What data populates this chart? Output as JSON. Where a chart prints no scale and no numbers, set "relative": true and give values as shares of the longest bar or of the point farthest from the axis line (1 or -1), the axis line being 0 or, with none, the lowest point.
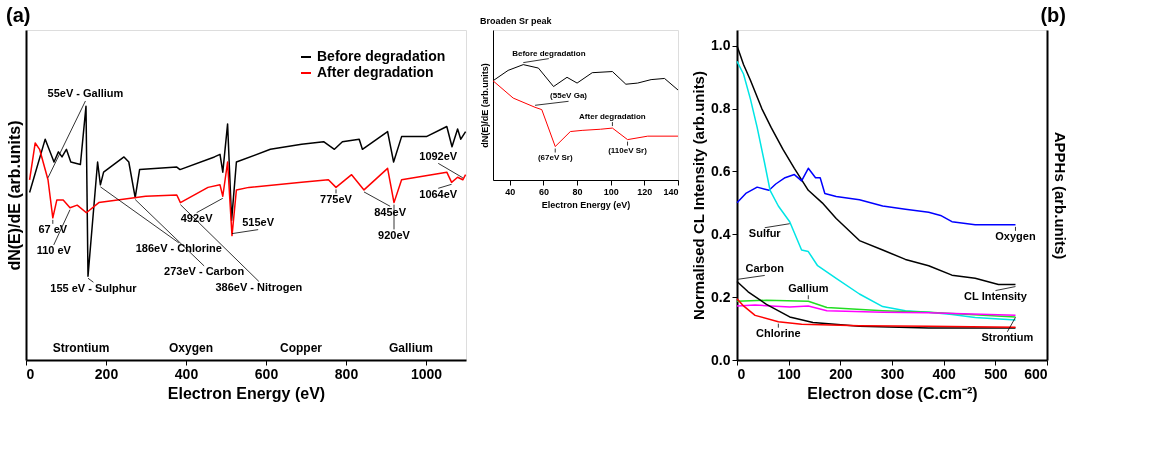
{
  "chart_data": [
    {
      "type": "line",
      "title": "(a)",
      "xlabel": "Electron Energy (eV)",
      "ylabel": "dN(E)/dE (arb.units)",
      "relative": true,
      "xlim": [
        0,
        1100
      ],
      "xticks": [
        0,
        200,
        400,
        600,
        800,
        1000
      ],
      "tick_labels": "x",
      "grid": false,
      "legend": "top right",
      "marker": "none",
      "line_style": "solid",
      "series": [
        {
          "name": "Before degradation",
          "color": "#000000",
          "x": [
            9,
            48,
            70,
            81,
            90,
            101,
            112,
            136,
            150,
            155,
            179,
            186,
            194,
            245,
            257,
            273,
            284,
            377,
            385,
            471,
            485,
            492,
            504,
            514,
            526,
            611,
            689,
            744,
            771,
            791,
            833,
            841,
            904,
            919,
            939,
            1001,
            1052,
            1065,
            1079,
            1087,
            1099
          ],
          "values": [
            0.66,
            0.87,
            0.78,
            0.82,
            0.8,
            0.83,
            0.78,
            0.77,
            1.0,
            0.33,
            0.78,
            0.69,
            0.74,
            0.8,
            0.78,
            0.64,
            0.75,
            0.76,
            0.75,
            0.8,
            0.81,
            0.74,
            0.93,
            0.55,
            0.78,
            0.83,
            0.85,
            0.86,
            0.83,
            0.86,
            0.87,
            0.83,
            0.9,
            0.78,
            0.88,
            0.88,
            0.92,
            0.84,
            0.91,
            0.87,
            0.9
          ]
        },
        {
          "name": "After degradation",
          "color": "#ff0000",
          "x": [
            9,
            23,
            34,
            55,
            67,
            77,
            93,
            110,
            128,
            151,
            182,
            299,
            377,
            386,
            455,
            485,
            492,
            504,
            515,
            526,
            557,
            689,
            756,
            775,
            814,
            845,
            904,
            920,
            939,
            1052,
            1064,
            1079,
            1092,
            1099
          ],
          "values": [
            0.71,
            0.855,
            0.83,
            0.71,
            0.56,
            0.63,
            0.63,
            0.6,
            0.61,
            0.58,
            0.62,
            0.645,
            0.65,
            0.62,
            0.68,
            0.69,
            0.645,
            0.78,
            0.49,
            0.67,
            0.68,
            0.7,
            0.71,
            0.68,
            0.73,
            0.67,
            0.755,
            0.62,
            0.71,
            0.74,
            0.7,
            0.72,
            0.71,
            0.73
          ]
        }
      ],
      "annotations": [
        {
          "text": "55eV - Gallium",
          "x": 55,
          "y": 0.71
        },
        {
          "text": "67 eV",
          "x": 67,
          "y": 0.56
        },
        {
          "text": "110 eV",
          "x": 110,
          "y": 0.6
        },
        {
          "text": "155 eV - Sulphur",
          "x": 155,
          "y": 0.33
        },
        {
          "text": "186eV - Chlorine",
          "x": 186,
          "y": 0.69
        },
        {
          "text": "273eV - Carbon",
          "x": 273,
          "y": 0.64
        },
        {
          "text": "386eV - Nitrogen",
          "x": 386,
          "y": 0.62
        },
        {
          "text": "492eV",
          "x": 492,
          "y": 0.645
        },
        {
          "text": "515eV",
          "x": 515,
          "y": 0.49
        },
        {
          "text": "775eV",
          "x": 775,
          "y": 0.68
        },
        {
          "text": "845eV",
          "x": 845,
          "y": 0.67
        },
        {
          "text": "920eV",
          "x": 920,
          "y": 0.62
        },
        {
          "text": "1064eV",
          "x": 1064,
          "y": 0.7
        },
        {
          "text": "1092eV",
          "x": 1092,
          "y": 0.71
        },
        "Strontium",
        "Oxygen",
        "Copper",
        "Gallium"
      ]
    },
    {
      "type": "line",
      "title": "Broaden Sr peak",
      "xlabel": "Electron Energy (eV)",
      "ylabel": "dN(E)/dE (arb.units)",
      "relative": true,
      "xlim": [
        30,
        140
      ],
      "xticks": [
        40,
        60,
        80,
        100,
        120,
        140
      ],
      "tick_labels": "x",
      "grid": false,
      "marker": "none",
      "line_style": "solid",
      "series": [
        {
          "color": "#000000",
          "x": [
            30,
            39,
            48,
            57,
            66,
            74,
            80,
            89,
            101,
            109,
            116,
            124,
            132,
            140
          ],
          "values": [
            0.86,
            0.95,
            1.0,
            0.97,
            0.81,
            0.89,
            0.84,
            0.93,
            0.94,
            0.83,
            0.84,
            0.87,
            0.88,
            0.78
          ]
        },
        {
          "color": "#ff0000",
          "x": [
            30,
            42,
            55,
            59,
            67,
            76,
            83,
            94,
            101,
            110,
            122,
            140
          ],
          "values": [
            0.86,
            0.71,
            0.63,
            0.61,
            0.29,
            0.42,
            0.43,
            0.44,
            0.45,
            0.35,
            0.38,
            0.38
          ]
        }
      ],
      "annotations": [
        {
          "text": "Before degradation",
          "x": 48,
          "y": 1.0
        },
        {
          "text": "(55eV Ga)",
          "x": 55,
          "y": 0.63
        },
        {
          "text": "(67eV Sr)",
          "x": 67,
          "y": 0.29
        },
        {
          "text": "After degradation",
          "x": 101,
          "y": 0.45
        },
        {
          "text": "(110eV Sr)",
          "x": 110,
          "y": 0.35
        }
      ]
    },
    {
      "type": "line",
      "title": "(b)",
      "xlabel": "Electron dose (C.cm⁻²)",
      "ylabel": "Normalised CL Intensity (arb.units)",
      "y2label": "APPHs (arb.units)",
      "xlim": [
        0,
        600
      ],
      "xticks": [
        0,
        100,
        200,
        300,
        400,
        500,
        600
      ],
      "ylim": [
        0,
        1.05
      ],
      "yticks": [
        {
          "value": 0,
          "label": "0.0"
        },
        0.2,
        0.4,
        0.6,
        0.8,
        {
          "value": 1,
          "label": "1.0"
        }
      ],
      "grid": false,
      "marker": "none",
      "line_style": "solid",
      "series": [
        {
          "color": "#000000",
          "x": [
            0,
            12.6,
            26,
            48,
            66,
            89,
            111,
            138,
            165,
            192,
            237,
            282,
            326,
            371,
            416,
            461,
            506,
            539
          ],
          "values": [
            1.0,
            0.94,
            0.89,
            0.8,
            0.74,
            0.67,
            0.61,
            0.54,
            0.5,
            0.45,
            0.38,
            0.35,
            0.32,
            0.3,
            0.27,
            0.26,
            0.24,
            0.24
          ]
        },
        {
          "color": "#0000ff",
          "x": [
            0,
            17,
            39,
            62,
            75,
            93,
            111,
            125,
            138,
            152,
            161,
            170,
            192,
            237,
            282,
            326,
            371,
            394,
            416,
            461,
            539
          ],
          "values": [
            0.5,
            0.53,
            0.55,
            0.54,
            0.56,
            0.58,
            0.59,
            0.57,
            0.61,
            0.58,
            0.58,
            0.53,
            0.52,
            0.51,
            0.49,
            0.48,
            0.47,
            0.46,
            0.44,
            0.43,
            0.43
          ]
        },
        {
          "color": "#00e5e5",
          "x": [
            0,
            12.6,
            26,
            39,
            53,
            64,
            80,
            102,
            125,
            138,
            156,
            192,
            237,
            282,
            326,
            371,
            416,
            461,
            539
          ],
          "values": [
            0.95,
            0.91,
            0.83,
            0.74,
            0.63,
            0.54,
            0.49,
            0.44,
            0.35,
            0.345,
            0.3,
            0.26,
            0.21,
            0.17,
            0.157,
            0.152,
            0.145,
            0.135,
            0.127
          ]
        },
        {
          "color": "#22dd22",
          "x": [
            0,
            57,
            138,
            174,
            282,
            371,
            539
          ],
          "values": [
            0.187,
            0.19,
            0.187,
            0.167,
            0.157,
            0.152,
            0.137
          ]
        },
        {
          "color": "#ff00ff",
          "x": [
            0,
            35,
            102,
            138,
            174,
            282,
            371,
            539
          ],
          "values": [
            0.172,
            0.175,
            0.169,
            0.172,
            0.157,
            0.152,
            0.15,
            0.142
          ]
        },
        {
          "color": "#000000",
          "x": [
            0,
            21.5,
            57,
            102,
            147,
            237,
            371,
            539
          ],
          "values": [
            0.25,
            0.217,
            0.177,
            0.137,
            0.119,
            0.107,
            0.102,
            0.102
          ]
        },
        {
          "color": "#ff0000",
          "x": [
            0,
            12.6,
            35,
            80,
            125,
            237,
            371,
            539
          ],
          "values": [
            0.195,
            0.172,
            0.142,
            0.122,
            0.114,
            0.109,
            0.107,
            0.104
          ]
        }
      ],
      "annotations": [
        {
          "text": "Oxygen",
          "x": 539,
          "y": 0.43
        },
        {
          "text": "CL Intensity",
          "x": 539,
          "y": 0.24
        },
        {
          "text": "Strontium",
          "x": 539,
          "y": 0.142
        },
        {
          "text": "Sulfur",
          "x": 102,
          "y": 0.44
        },
        {
          "text": "Carbon",
          "x": 0,
          "y": 0.25
        },
        {
          "text": "Gallium",
          "x": 138,
          "y": 0.187
        },
        {
          "text": "Chlorine",
          "x": 80,
          "y": 0.122
        }
      ]
    }
  ]
}
